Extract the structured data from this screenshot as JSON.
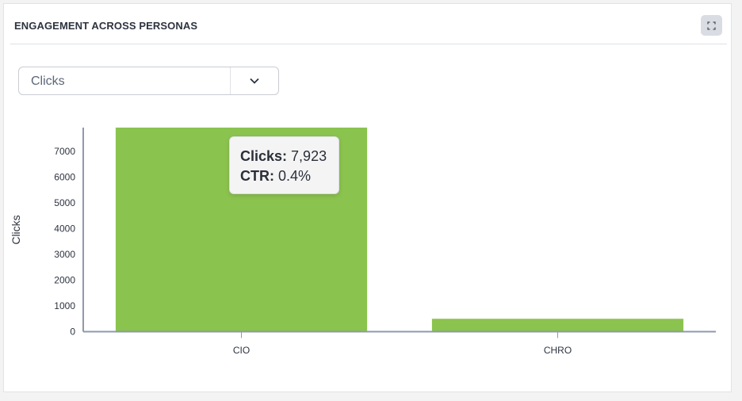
{
  "header": {
    "title": "ENGAGEMENT ACROSS PERSONAS",
    "expand_icon": "expand-icon"
  },
  "metric_select": {
    "value": "Clicks",
    "icon": "chevron-down-icon"
  },
  "tooltip": {
    "clicks_label": "Clicks:",
    "clicks_value": "7,923",
    "ctr_label": "CTR:",
    "ctr_value": "0.4%"
  },
  "chart_data": {
    "type": "bar",
    "categories": [
      "CIO",
      "CHRO"
    ],
    "values": [
      7923,
      500
    ],
    "xlabel": "",
    "ylabel": "Clicks",
    "ylim": [
      0,
      7923
    ],
    "yticks": [
      0,
      1000,
      2000,
      3000,
      4000,
      5000,
      6000,
      7000
    ],
    "grid": false,
    "bar_color": "#8bc34f",
    "axis_color": "#8f99ab"
  }
}
